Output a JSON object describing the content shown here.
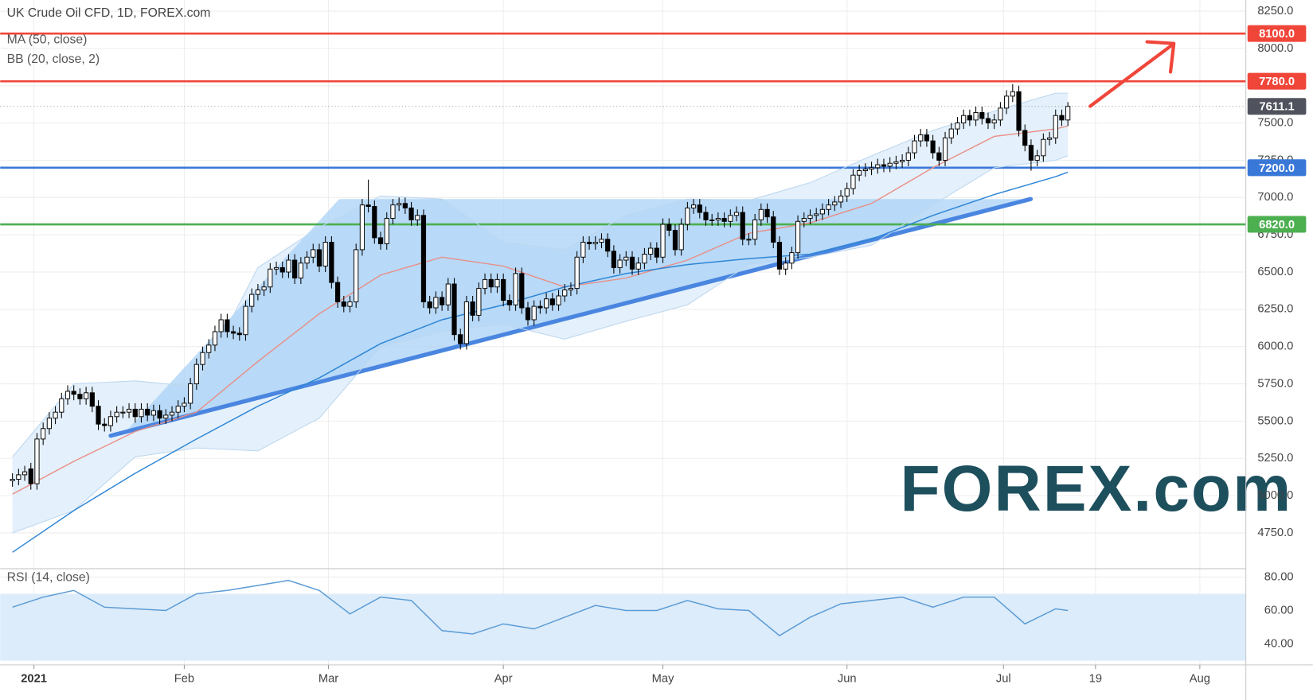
{
  "watermark": "FOREX.com",
  "chart_data": [
    {
      "type": "candlestick",
      "title": "UK Crude Oil CFD, 1D, FOREX.com",
      "xlim": [
        -2,
        201
      ],
      "ylim": [
        4510,
        8325
      ],
      "grid": true,
      "up_color": "#ffffff",
      "down_color": "#000000",
      "xticks": [
        {
          "value": 3.5,
          "label": "2021"
        },
        {
          "value": 28,
          "label": "Feb"
        },
        {
          "value": 51.5,
          "label": "Mar"
        },
        {
          "value": 80,
          "label": "Apr"
        },
        {
          "value": 106,
          "label": "May"
        },
        {
          "value": 136,
          "label": "Jun"
        },
        {
          "value": 161.5,
          "label": "Jul"
        },
        {
          "value": 176.5,
          "label": "19"
        },
        {
          "value": 193.5,
          "label": "Aug"
        }
      ],
      "yticks": [
        {
          "value": 4750,
          "label": "4750.0"
        },
        {
          "value": 5000,
          "label": "5000.0"
        },
        {
          "value": 5250,
          "label": "5250.0"
        },
        {
          "value": 5500,
          "label": "5500.0"
        },
        {
          "value": 5750,
          "label": "5750.0"
        },
        {
          "value": 6000,
          "label": "6000.0"
        },
        {
          "value": 6250,
          "label": "6250.0"
        },
        {
          "value": 6500,
          "label": "6500.0"
        },
        {
          "value": 6750,
          "label": "6750.0"
        },
        {
          "value": 7000,
          "label": "7000.0"
        },
        {
          "value": 7250,
          "label": "7250.0"
        },
        {
          "value": 7500,
          "label": "7500.0"
        },
        {
          "value": 7750,
          "label": "7750.0"
        },
        {
          "value": 8000,
          "label": "8000.0"
        },
        {
          "value": 8250,
          "label": "8250.0"
        }
      ],
      "open": [
        5100,
        5110,
        5140,
        5180,
        5080,
        5380,
        5450,
        5520,
        5560,
        5650,
        5700,
        5680,
        5650,
        5690,
        5600,
        5480,
        5470,
        5530,
        5560,
        5560,
        5580,
        5530,
        5580,
        5540,
        5570,
        5520,
        5540,
        5560,
        5600,
        5620,
        5750,
        5880,
        5960,
        6010,
        6100,
        6180,
        6100,
        6090,
        6080,
        6270,
        6350,
        6380,
        6400,
        6520,
        6530,
        6500,
        6580,
        6460,
        6560,
        6600,
        6650,
        6540,
        6700,
        6430,
        6300,
        6270,
        6300,
        6650,
        6950,
        6940,
        6730,
        6690,
        6860,
        6950,
        6960,
        6930,
        6850,
        6880,
        6300,
        6260,
        6330,
        6280,
        6420,
        6080,
        6020,
        6300,
        6210,
        6390,
        6450,
        6400,
        6450,
        6310,
        6280,
        6490,
        6260,
        6180,
        6270,
        6260,
        6320,
        6280,
        6340,
        6380,
        6390,
        6600,
        6700,
        6690,
        6700,
        6720,
        6640,
        6530,
        6580,
        6600,
        6520,
        6560,
        6620,
        6660,
        6600,
        6820,
        6780,
        6650,
        6820,
        6930,
        6950,
        6900,
        6850,
        6850,
        6860,
        6840,
        6880,
        6900,
        6720,
        6720,
        6850,
        6920,
        6870,
        6700,
        6520,
        6560,
        6630,
        6840,
        6860,
        6880,
        6890,
        6920,
        6950,
        6970,
        7010,
        7060,
        7150,
        7180,
        7190,
        7200,
        7220,
        7210,
        7230,
        7240,
        7250,
        7300,
        7380,
        7420,
        7380,
        7300,
        7250,
        7400,
        7460,
        7500,
        7550,
        7520,
        7570,
        7530,
        7500,
        7520,
        7600,
        7680,
        7710,
        7450,
        7350,
        7250,
        7280,
        7390,
        7400,
        7550,
        7520
      ],
      "high": [
        5150,
        5180,
        5200,
        5220,
        5420,
        5490,
        5560,
        5600,
        5690,
        5740,
        5740,
        5720,
        5730,
        5730,
        5640,
        5520,
        5570,
        5600,
        5600,
        5620,
        5620,
        5620,
        5620,
        5610,
        5610,
        5580,
        5600,
        5640,
        5660,
        5790,
        5920,
        6000,
        6050,
        6140,
        6220,
        6220,
        6140,
        6130,
        6310,
        6390,
        6420,
        6440,
        6560,
        6570,
        6570,
        6620,
        6620,
        6600,
        6640,
        6690,
        6690,
        6740,
        6740,
        6470,
        6340,
        6340,
        6690,
        6990,
        7120,
        6980,
        6770,
        6900,
        6990,
        7000,
        7000,
        6970,
        6920,
        6920,
        6340,
        6370,
        6370,
        6460,
        6460,
        6120,
        6340,
        6340,
        6430,
        6490,
        6490,
        6490,
        6490,
        6350,
        6530,
        6530,
        6300,
        6310,
        6310,
        6360,
        6360,
        6380,
        6420,
        6430,
        6640,
        6740,
        6740,
        6740,
        6760,
        6760,
        6680,
        6620,
        6640,
        6640,
        6600,
        6660,
        6700,
        6700,
        6860,
        6860,
        6820,
        6860,
        6970,
        6990,
        6990,
        6940,
        6890,
        6900,
        6900,
        6920,
        6940,
        6940,
        6760,
        6890,
        6960,
        6960,
        6910,
        6740,
        6600,
        6670,
        6880,
        6900,
        6920,
        6930,
        6960,
        6990,
        7010,
        7050,
        7100,
        7190,
        7220,
        7230,
        7240,
        7260,
        7260,
        7270,
        7280,
        7290,
        7340,
        7420,
        7460,
        7460,
        7420,
        7340,
        7440,
        7500,
        7540,
        7590,
        7590,
        7610,
        7610,
        7570,
        7560,
        7640,
        7720,
        7760,
        7750,
        7490,
        7390,
        7320,
        7430,
        7440,
        7590,
        7590,
        7640
      ],
      "low": [
        5060,
        5070,
        5100,
        5040,
        5040,
        5340,
        5410,
        5480,
        5520,
        5610,
        5640,
        5610,
        5610,
        5560,
        5440,
        5430,
        5430,
        5490,
        5520,
        5520,
        5490,
        5490,
        5500,
        5500,
        5480,
        5480,
        5500,
        5520,
        5560,
        5580,
        5710,
        5840,
        5920,
        5970,
        6060,
        6060,
        6050,
        6040,
        6040,
        6230,
        6310,
        6340,
        6360,
        6480,
        6460,
        6460,
        6420,
        6420,
        6520,
        6560,
        6500,
        6500,
        6390,
        6260,
        6230,
        6230,
        6260,
        6610,
        6900,
        6690,
        6650,
        6650,
        6820,
        6910,
        6890,
        6810,
        6810,
        6260,
        6220,
        6220,
        6240,
        6240,
        6040,
        5980,
        5980,
        6170,
        6170,
        6350,
        6360,
        6360,
        6270,
        6240,
        6240,
        6220,
        6140,
        6140,
        6220,
        6220,
        6240,
        6240,
        6300,
        6340,
        6350,
        6560,
        6650,
        6650,
        6660,
        6600,
        6490,
        6490,
        6540,
        6480,
        6480,
        6520,
        6580,
        6560,
        6560,
        6740,
        6610,
        6610,
        6780,
        6890,
        6860,
        6810,
        6810,
        6810,
        6800,
        6800,
        6840,
        6680,
        6680,
        6680,
        6810,
        6830,
        6660,
        6480,
        6480,
        6520,
        6590,
        6800,
        6820,
        6840,
        6850,
        6880,
        6910,
        6930,
        6970,
        7020,
        7110,
        7140,
        7150,
        7160,
        7170,
        7170,
        7190,
        7200,
        7210,
        7260,
        7340,
        7340,
        7260,
        7210,
        7210,
        7360,
        7420,
        7460,
        7480,
        7480,
        7490,
        7460,
        7460,
        7480,
        7560,
        7640,
        7410,
        7310,
        7180,
        7210,
        7240,
        7350,
        7360,
        7480,
        7480
      ],
      "close": [
        5110,
        5140,
        5160,
        5080,
        5380,
        5450,
        5520,
        5560,
        5650,
        5700,
        5680,
        5650,
        5690,
        5600,
        5480,
        5470,
        5530,
        5560,
        5560,
        5580,
        5530,
        5580,
        5540,
        5570,
        5520,
        5540,
        5560,
        5600,
        5620,
        5750,
        5880,
        5960,
        6010,
        6100,
        6180,
        6100,
        6090,
        6080,
        6270,
        6350,
        6380,
        6400,
        6520,
        6530,
        6500,
        6580,
        6460,
        6560,
        6600,
        6650,
        6540,
        6700,
        6430,
        6300,
        6270,
        6300,
        6650,
        6950,
        6940,
        6730,
        6690,
        6860,
        6950,
        6960,
        6930,
        6850,
        6880,
        6300,
        6260,
        6330,
        6280,
        6420,
        6080,
        6020,
        6300,
        6210,
        6390,
        6450,
        6400,
        6450,
        6310,
        6280,
        6490,
        6260,
        6180,
        6270,
        6260,
        6320,
        6280,
        6340,
        6380,
        6390,
        6600,
        6700,
        6690,
        6700,
        6720,
        6640,
        6530,
        6580,
        6600,
        6520,
        6560,
        6620,
        6660,
        6600,
        6820,
        6780,
        6650,
        6820,
        6930,
        6950,
        6900,
        6850,
        6850,
        6860,
        6840,
        6880,
        6900,
        6720,
        6720,
        6850,
        6920,
        6870,
        6700,
        6520,
        6560,
        6630,
        6840,
        6860,
        6880,
        6890,
        6920,
        6950,
        6970,
        7010,
        7060,
        7150,
        7180,
        7190,
        7200,
        7220,
        7210,
        7230,
        7240,
        7250,
        7300,
        7380,
        7420,
        7380,
        7300,
        7250,
        7400,
        7460,
        7500,
        7550,
        7520,
        7570,
        7530,
        7500,
        7520,
        7600,
        7680,
        7710,
        7450,
        7350,
        7250,
        7280,
        7390,
        7400,
        7550,
        7520,
        7611.1
      ],
      "indicator_x": [
        0,
        10,
        20,
        30,
        40,
        50,
        60,
        70,
        80,
        90,
        100,
        110,
        120,
        130,
        140,
        150,
        160,
        170,
        172
      ],
      "ma": {
        "name": "MA (50, close)",
        "color": "#2e86d6",
        "values": [
          4620,
          4900,
          5150,
          5380,
          5600,
          5790,
          6020,
          6180,
          6280,
          6400,
          6490,
          6550,
          6590,
          6620,
          6720,
          6880,
          7020,
          7140,
          7170
        ]
      },
      "bb": {
        "name": "BB (20, close, 2)",
        "color": "#ea8d84",
        "band_color": "#e4f0fb",
        "edge_color": "#bcd7ef",
        "basis": [
          5010,
          5230,
          5430,
          5560,
          5900,
          6220,
          6480,
          6600,
          6540,
          6400,
          6460,
          6580,
          6760,
          6830,
          6960,
          7200,
          7410,
          7460,
          7480
        ],
        "upper": [
          5260,
          5750,
          5770,
          5730,
          6530,
          6800,
          7010,
          6990,
          6700,
          6650,
          6880,
          6990,
          6980,
          7100,
          7280,
          7450,
          7580,
          7700,
          7700
        ],
        "lower": [
          4750,
          4900,
          5260,
          5320,
          5300,
          5520,
          6000,
          6100,
          6150,
          6050,
          6170,
          6280,
          6550,
          6600,
          6680,
          6950,
          7200,
          7250,
          7280
        ]
      },
      "levels": [
        {
          "value": 8100,
          "label": "8100.0",
          "color": "#f0463a"
        },
        {
          "value": 7780,
          "label": "7780.0",
          "color": "#f0463a"
        },
        {
          "value": 7611.1,
          "label": "7611.1",
          "color": "#50535e",
          "style": "dotted"
        },
        {
          "value": 7200,
          "label": "7200.0",
          "color": "#3a78d8"
        },
        {
          "value": 6820,
          "label": "6820.0",
          "color": "#4caf50"
        }
      ]
    },
    {
      "type": "line",
      "title": "RSI (14, close)",
      "xlim": [
        -2,
        201
      ],
      "ylim": [
        27.5,
        85
      ],
      "band": [
        30,
        70
      ],
      "band_color": "#dcecfa",
      "color": "#5b9bd5",
      "yticks": [
        {
          "value": 40,
          "label": "40.00"
        },
        {
          "value": 60,
          "label": "60.00"
        },
        {
          "value": 80,
          "label": "80.00"
        }
      ],
      "x": [
        0,
        5,
        10,
        15,
        20,
        25,
        30,
        35,
        40,
        45,
        50,
        55,
        60,
        65,
        70,
        75,
        80,
        85,
        90,
        95,
        100,
        105,
        110,
        115,
        120,
        125,
        130,
        135,
        140,
        145,
        150,
        155,
        160,
        165,
        170,
        172
      ],
      "values": [
        62,
        68,
        72,
        62,
        61,
        60,
        70,
        72,
        75,
        78,
        72,
        58,
        68,
        66,
        48,
        46,
        52,
        49,
        56,
        63,
        60,
        60,
        66,
        61,
        60,
        45,
        56,
        64,
        66,
        68,
        62,
        68,
        68,
        52,
        61,
        60
      ]
    }
  ]
}
